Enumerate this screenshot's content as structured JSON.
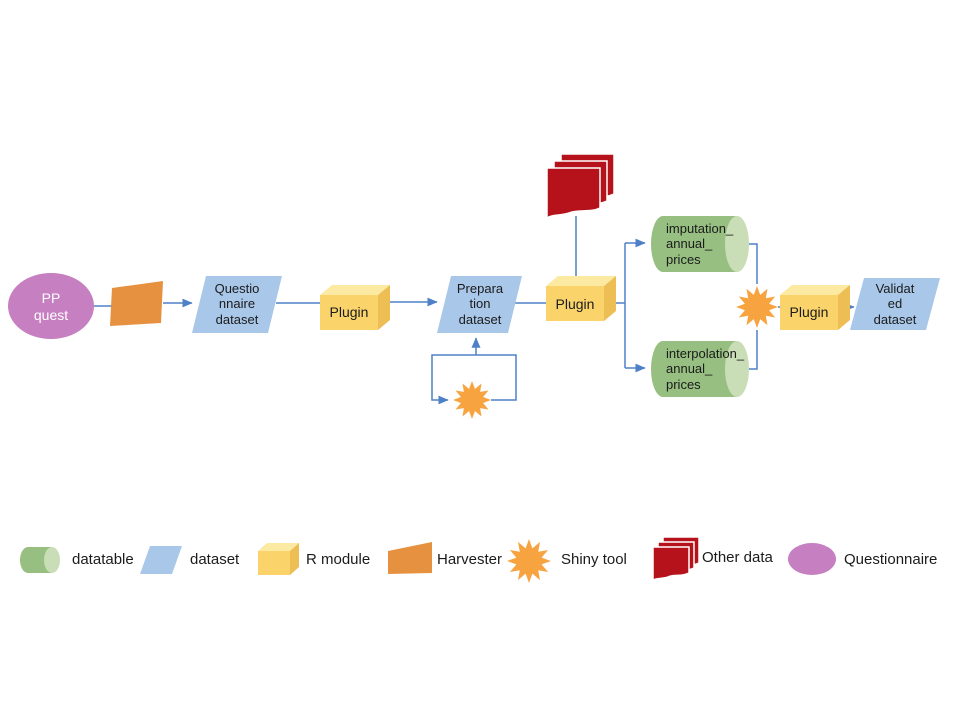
{
  "colors": {
    "line": "#4e80c8",
    "pink": "#c67fc1",
    "orange": "#e6913f",
    "star-orange": "#f7a440",
    "blue": "#a9c7e8",
    "yellow-front": "#fad46b",
    "yellow-top": "#fce9a2",
    "yellow-side": "#edbe54",
    "green": "#97bf81",
    "green-light": "#c9deb6",
    "red": "#b5121b",
    "text": "#1b1b1b"
  },
  "nodes": {
    "pp_quest": {
      "label": "PP\nquest",
      "type": "Questionnaire"
    },
    "harvester": {
      "type": "Harvester"
    },
    "questionnaire_dataset": {
      "label": "Questio\nnnaire\ndataset",
      "type": "dataset"
    },
    "plugin1": {
      "label": "Plugin",
      "type": "R module"
    },
    "preparation_dataset": {
      "label": "Prepara\ntion\ndataset",
      "type": "dataset"
    },
    "prep_shiny_tool": {
      "type": "Shiny tool"
    },
    "other_data": {
      "type": "Other data"
    },
    "plugin2": {
      "label": "Plugin",
      "type": "R module"
    },
    "imputation_table": {
      "label": "imputation_\nannual_\nprices",
      "type": "datatable"
    },
    "interpolation_table": {
      "label": "interpolation_\nannual_\nprices",
      "type": "datatable"
    },
    "validation_shiny_tool": {
      "type": "Shiny tool"
    },
    "plugin3": {
      "label": "Plugin",
      "type": "R module"
    },
    "validated_dataset": {
      "label": "Validat\ned\ndataset",
      "type": "dataset"
    }
  },
  "edges": [
    {
      "from": "PP quest",
      "to": "Harvester"
    },
    {
      "from": "Harvester",
      "to": "Questionnaire dataset"
    },
    {
      "from": "Questionnaire dataset",
      "to": "Plugin"
    },
    {
      "from": "Plugin",
      "to": "Preparation dataset"
    },
    {
      "from": "Preparation dataset",
      "to": "Shiny tool",
      "type": "loop"
    },
    {
      "from": "Shiny tool",
      "to": "Preparation dataset",
      "type": "loop"
    },
    {
      "from": "Preparation dataset",
      "to": "Plugin"
    },
    {
      "from": "Other data",
      "to": "Plugin"
    },
    {
      "from": "Plugin",
      "to": "imputation_annual_prices"
    },
    {
      "from": "Plugin",
      "to": "interpolation_annual_prices"
    },
    {
      "from": "imputation_annual_prices",
      "to": "Shiny tool"
    },
    {
      "from": "interpolation_annual_prices",
      "to": "Shiny tool"
    },
    {
      "from": "Shiny tool",
      "to": "Plugin"
    },
    {
      "from": "Plugin",
      "to": "Validated dataset"
    }
  ],
  "legend": {
    "items": [
      {
        "icon": "datatable-cylinder-icon",
        "label": "datatable"
      },
      {
        "icon": "dataset-parallelogram-icon",
        "label": "dataset"
      },
      {
        "icon": "r-module-box-icon",
        "label": "R module"
      },
      {
        "icon": "harvester-trapezoid-icon",
        "label": "Harvester"
      },
      {
        "icon": "shiny-tool-star-icon",
        "label": "Shiny tool"
      },
      {
        "icon": "other-data-documents-icon",
        "label": "Other data"
      },
      {
        "icon": "questionnaire-ellipse-icon",
        "label": "Questionnaire"
      }
    ]
  }
}
